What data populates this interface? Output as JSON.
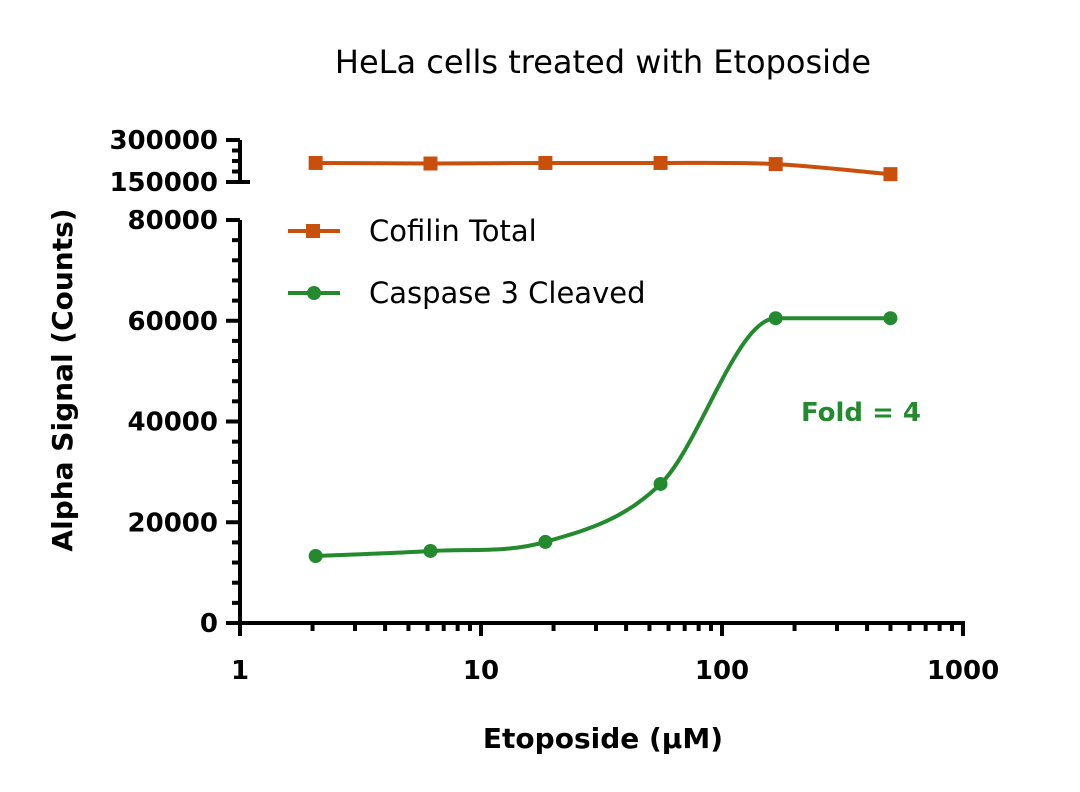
{
  "chart_data": {
    "type": "line",
    "title": "HeLa cells treated with Etoposide",
    "xlabel": "Etoposide (µM)",
    "ylabel": "Alpha Signal (Counts)",
    "x_scale": "log",
    "xlim": [
      1,
      1000
    ],
    "x_ticks": [
      "1",
      "10",
      "100",
      "1000"
    ],
    "y_axis_segments": [
      {
        "range": [
          0,
          80000
        ],
        "ticks": [
          "0",
          "20000",
          "40000",
          "60000",
          "80000"
        ]
      },
      {
        "range": [
          150000,
          300000
        ],
        "ticks": [
          "150000",
          "300000"
        ]
      }
    ],
    "x": [
      2.06,
      6.17,
      18.5,
      55.6,
      167,
      500
    ],
    "series": [
      {
        "name": "Cofilin Total",
        "color": "#c94f0c",
        "marker": "square",
        "values": [
          218000,
          216000,
          218000,
          218000,
          214000,
          178000
        ]
      },
      {
        "name": "Caspase 3 Cleaved",
        "color": "#238a2e",
        "marker": "circle",
        "values": [
          13300,
          14300,
          16100,
          27600,
          60500,
          60500
        ]
      }
    ],
    "annotations": [
      {
        "text": "Fold = 4",
        "color": "#238a2e"
      }
    ],
    "legend_position": "upper left (inside)",
    "grid": false
  }
}
